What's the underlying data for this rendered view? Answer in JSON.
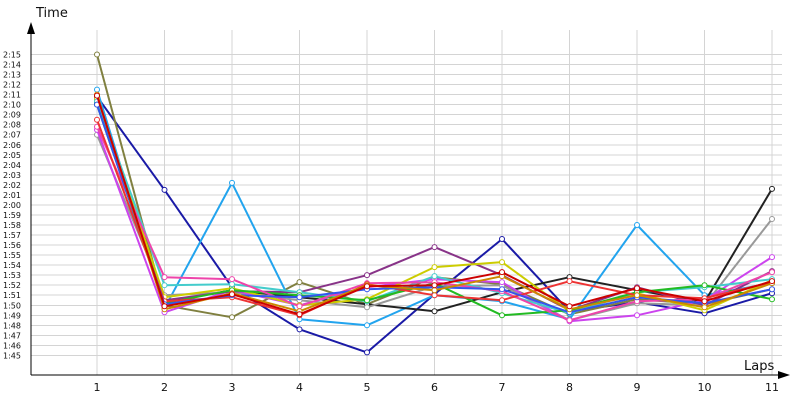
{
  "chart_data": {
    "type": "line",
    "title": "",
    "xlabel": "Laps",
    "ylabel": "Time",
    "grid": true,
    "legend": "none",
    "x": [
      1,
      2,
      3,
      4,
      5,
      6,
      7,
      8,
      9,
      10,
      11
    ],
    "ylim": [
      105,
      135
    ],
    "ytick_values": [
      105,
      106,
      107,
      108,
      109,
      110,
      111,
      112,
      113,
      114,
      115,
      116,
      117,
      118,
      119,
      120,
      121,
      122,
      123,
      124,
      125,
      126,
      127,
      128,
      129,
      130,
      131,
      132,
      133,
      134,
      135
    ],
    "ytick_labels": [
      "1:45",
      "1:46",
      "1:47",
      "1:48",
      "1:49",
      "1:50",
      "1:51",
      "1:52",
      "1:53",
      "1:54",
      "1:55",
      "1:56",
      "1:57",
      "1:58",
      "1:59",
      "2:00",
      "2:01",
      "2:02",
      "2:03",
      "2:04",
      "2:05",
      "2:06",
      "2:07",
      "2:08",
      "2:09",
      "2:10",
      "2:11",
      "2:12",
      "2:13",
      "2:14",
      "2:15"
    ],
    "series": [
      {
        "color": "#1a1aa6",
        "values": [
          130.8,
          121.5,
          111.8,
          107.6,
          105.3,
          111.1,
          116.6,
          109.4,
          110.3,
          109.2,
          111.2
        ]
      },
      {
        "color": "#808040",
        "values": [
          135.0,
          110.0,
          108.8,
          112.3,
          110.1,
          112.8,
          112.1,
          109.1,
          110.6,
          110.1,
          111.6
        ]
      },
      {
        "color": "#22a4ee",
        "values": [
          131.5,
          109.7,
          122.2,
          108.6,
          108.0,
          111.0,
          110.4,
          108.6,
          118.0,
          111.0,
          112.2
        ]
      },
      {
        "color": "#222222",
        "values": [
          130.2,
          110.3,
          111.5,
          110.8,
          110.1,
          109.4,
          111.3,
          112.8,
          111.5,
          110.3,
          121.6
        ]
      },
      {
        "color": "#999999",
        "values": [
          127.0,
          111.0,
          111.3,
          110.5,
          109.8,
          111.9,
          112.0,
          108.5,
          110.2,
          110.0,
          118.6
        ]
      },
      {
        "color": "#cc44ee",
        "values": [
          127.5,
          109.3,
          111.5,
          110.0,
          111.8,
          112.6,
          112.3,
          108.4,
          109.0,
          110.5,
          114.8
        ]
      },
      {
        "color": "#883388",
        "values": [
          130.5,
          110.5,
          111.4,
          111.3,
          113.0,
          115.8,
          113.0,
          109.5,
          111.8,
          110.0,
          113.4
        ]
      },
      {
        "color": "#cccc00",
        "values": [
          130.6,
          110.8,
          111.7,
          110.0,
          110.6,
          113.8,
          114.3,
          109.4,
          111.2,
          109.5,
          112.5
        ]
      },
      {
        "color": "#44cccc",
        "values": [
          130.3,
          112.0,
          112.1,
          111.3,
          110.4,
          112.9,
          111.2,
          109.2,
          111.3,
          111.8,
          112.6
        ]
      },
      {
        "color": "#22bb22",
        "values": [
          130.0,
          110.2,
          111.5,
          111.0,
          110.5,
          112.2,
          109.0,
          109.5,
          111.3,
          112.0,
          110.6
        ]
      },
      {
        "color": "#ee44aa",
        "values": [
          127.8,
          112.8,
          112.6,
          109.9,
          112.2,
          112.3,
          111.4,
          108.5,
          110.4,
          110.6,
          113.3
        ]
      },
      {
        "color": "#ee3333",
        "values": [
          128.5,
          110.4,
          110.8,
          109.0,
          112.1,
          111.0,
          110.5,
          112.4,
          111.0,
          110.7,
          112.3
        ]
      },
      {
        "color": "#3355ee",
        "values": [
          130.0,
          110.1,
          111.0,
          110.8,
          111.6,
          111.8,
          111.6,
          109.3,
          110.8,
          110.2,
          111.6
        ]
      },
      {
        "color": "#cc8800",
        "values": [
          131.0,
          109.6,
          111.2,
          109.4,
          112.0,
          111.5,
          112.9,
          109.6,
          111.0,
          109.8,
          112.2
        ]
      },
      {
        "color": "#cc0000",
        "values": [
          130.9,
          109.9,
          111.1,
          109.1,
          111.9,
          112.0,
          113.3,
          109.9,
          111.7,
          110.4,
          112.4
        ]
      }
    ]
  }
}
